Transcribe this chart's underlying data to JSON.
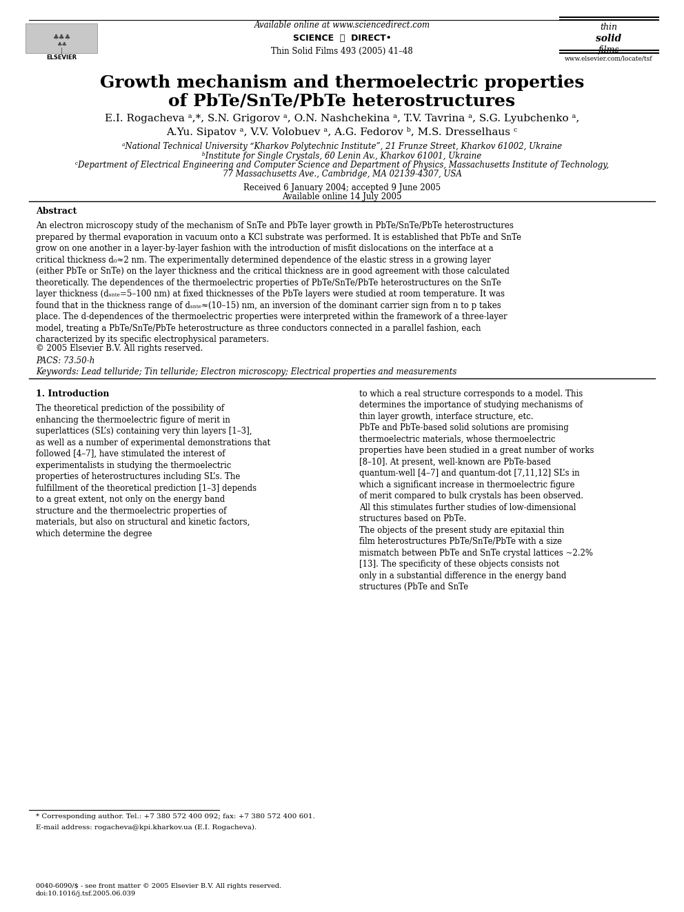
{
  "title_line1": "Growth mechanism and thermoelectric properties",
  "title_line2": "of PbTe/SnTe/PbTe heterostructures",
  "authors_line1": "E.I. Rogacheva ᵃ,*, S.N. Grigorov ᵃ, O.N. Nashchekina ᵃ, T.V. Tavrina ᵃ, S.G. Lyubchenko ᵃ,",
  "authors_line2": "A.Yu. Sipatov ᵃ, V.V. Volobuev ᵃ, A.G. Fedorov ᵇ, M.S. Dresselhaus ᶜ",
  "affil_a": "ᵃNational Technical University “Kharkov Polytechnic Institute”, 21 Frunze Street, Kharkov 61002, Ukraine",
  "affil_b": "ᵇInstitute for Single Crystals, 60 Lenin Av., Kharkov 61001, Ukraine",
  "affil_c": "ᶜDepartment of Electrical Engineering and Computer Science and Department of Physics, Massachusetts Institute of Technology,",
  "affil_c2": "77 Massachusetts Ave., Cambridge, MA 02139-4307, USA",
  "received": "Received 6 January 2004; accepted 9 June 2005",
  "available": "Available online 14 July 2005",
  "header_center": "Available online at www.sciencedirect.com",
  "journal_info": "Thin Solid Films 493 (2005) 41–48",
  "website": "www.elsevier.com/locate/tsf",
  "abstract_title": "Abstract",
  "abstract_text": "An electron microscopy study of the mechanism of SnTe and PbTe layer growth in PbTe/SnTe/PbTe heterostructures prepared by thermal evaporation in vacuum onto a KCl substrate was performed. It is established that PbTe and SnTe grow on one another in a layer-by-layer fashion with the introduction of misfit dislocations on the interface at a critical thickness d₀≈2 nm. The experimentally determined dependence of the elastic stress in a growing layer (either PbTe or SnTe) on the layer thickness and the critical thickness are in good agreement with those calculated theoretically. The dependences of the thermoelectric properties of PbTe/SnTe/PbTe heterostructures on the SnTe layer thickness (dₛₙₜₑ=5–100 nm) at fixed thicknesses of the PbTe layers were studied at room temperature. It was found that in the thickness range of dₛₙₜₑ≈(10–15) nm, an inversion of the dominant carrier sign from n to p takes place. The d-dependences of the thermoelectric properties were interpreted within the framework of a three-layer model, treating a PbTe/SnTe/PbTe heterostructure as three conductors connected in a parallel fashion, each characterized by its specific electrophysical parameters.",
  "copyright": "© 2005 Elsevier B.V. All rights reserved.",
  "pacs": "PACS: 73.50-h",
  "keywords": "Keywords: Lead telluride; Tin telluride; Electron microscopy; Electrical properties and measurements",
  "intro_heading": "1. Introduction",
  "intro_text_left": "The theoretical prediction of the possibility of enhancing the thermoelectric figure of merit in superlattices (SL’s) containing very thin layers [1–3], as well as a number of experimental demonstrations that followed [4–7], have stimulated the interest of experimentalists in studying the thermoelectric properties of heterostructures including SL’s. The fulfillment of the theoretical prediction [1–3] depends to a great extent, not only on the energy band structure and the thermoelectric properties of materials, but also on structural and kinetic factors, which determine the degree",
  "intro_text_right": "to which a real structure corresponds to a model. This determines the importance of studying mechanisms of thin layer growth, interface structure, etc.\n    PbTe and PbTe-based solid solutions are promising thermoelectric materials, whose thermoelectric properties have been studied in a great number of works [8–10]. At present, well-known are PbTe-based quantum-well [4–7] and quantum-dot [7,11,12] SL’s in which a significant increase in thermoelectric figure of merit compared to bulk crystals has been observed. All this stimulates further studies of low-dimensional structures based on PbTe.\n    The objects of the present study are epitaxial thin film heterostructures PbTe/SnTe/PbTe with a size mismatch between PbTe and SnTe crystal lattices ~2.2% [13]. The specificity of these objects consists not only in a substantial difference in the energy band structures (PbTe and SnTe",
  "footnote_text": "* Corresponding author. Tel.: +7 380 572 400 092; fax: +7 380 572 400 601.",
  "footnote_email": "E-mail address: rogacheva@kpi.kharkov.ua (E.I. Rogacheva).",
  "footer_left": "0040-6090/$ - see front matter © 2005 Elsevier B.V. All rights reserved.\ndoi:10.1016/j.tsf.2005.06.039",
  "bg_color": "#ffffff",
  "text_color": "#000000",
  "title_fontsize": 18,
  "author_fontsize": 12,
  "affil_fontsize": 8.5,
  "abstract_fontsize": 8.5,
  "body_fontsize": 8.5,
  "abs_chars_per_line": 115,
  "col_chars_per_line": 55
}
